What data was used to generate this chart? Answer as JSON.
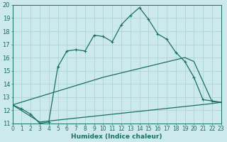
{
  "xlabel": "Humidex (Indice chaleur)",
  "background_color": "#cce9eb",
  "grid_color": "#aed4d6",
  "line_color": "#1a6e64",
  "x_min": 0,
  "x_max": 23,
  "y_min": 11,
  "y_max": 20,
  "line1_x": [
    0,
    1,
    2,
    3,
    4,
    5,
    6,
    7,
    8,
    9,
    10,
    11,
    12,
    13,
    14,
    15,
    16,
    17,
    18,
    19,
    20,
    21,
    22,
    23
  ],
  "line1_y": [
    12.4,
    12.1,
    11.7,
    11.0,
    11.1,
    15.3,
    16.5,
    16.6,
    16.5,
    17.7,
    17.6,
    17.2,
    18.5,
    19.2,
    19.8,
    18.9,
    17.8,
    17.4,
    16.4,
    15.7,
    14.5,
    12.8,
    12.7,
    12.6
  ],
  "line2_x": [
    0,
    10,
    19,
    20,
    22,
    23
  ],
  "line2_y": [
    12.4,
    14.5,
    16.0,
    15.7,
    12.65,
    12.6
  ],
  "line3_x": [
    0,
    3,
    22,
    23
  ],
  "line3_y": [
    12.4,
    11.1,
    12.5,
    12.6
  ],
  "tick_fontsize": 5.5,
  "xlabel_fontsize": 6.5
}
